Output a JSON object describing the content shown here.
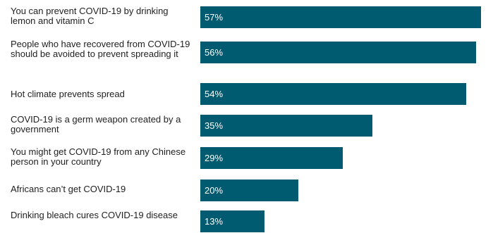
{
  "chart_data": {
    "type": "bar",
    "orientation": "horizontal",
    "categories": [
      "You can prevent COVID-19 by drinking lemon and vitamin C",
      "People who have recovered from COVID-19 should be avoided to prevent spreading it",
      "Hot climate prevents spread",
      "COVID-19 is a germ weapon created by a government",
      "You might get COVID-19 from any Chinese person in your country",
      "Africans can’t get COVID-19",
      "Drinking bleach cures COVID-19 disease"
    ],
    "values": [
      57,
      56,
      54,
      35,
      29,
      20,
      13
    ],
    "value_labels": [
      "57%",
      "56%",
      "54%",
      "35%",
      "29%",
      "20%",
      "13%"
    ],
    "unit": "%",
    "xlim": [
      0,
      59.5
    ],
    "bar_color": "#005a70",
    "label_color": "#ffffff",
    "grid": false,
    "legend": "none"
  }
}
